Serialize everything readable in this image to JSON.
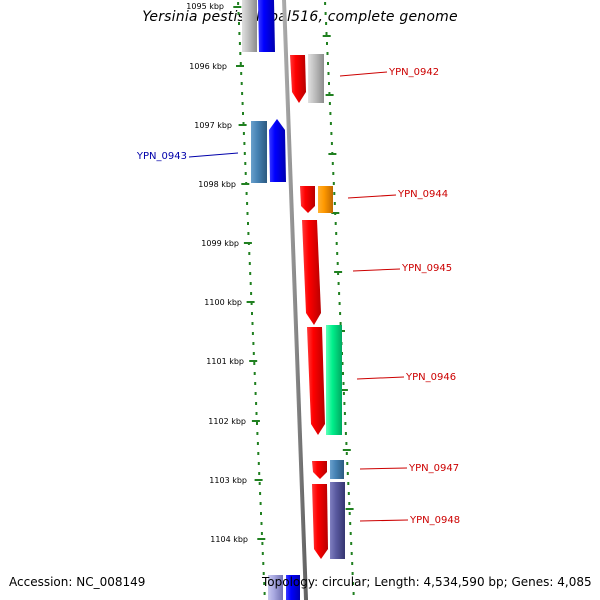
{
  "title": "Yersinia pestis Nepal516, complete genome",
  "accession": "Accession: NC_008149",
  "stats": "Topology: circular; Length: 4,534,590 bp; Genes: 4,085",
  "colors": {
    "backbone": "#8c8c8c",
    "tick": "#208020",
    "forward_label": "#cc0000",
    "reverse_label": "#0000aa"
  },
  "scale_labels": [
    {
      "text": "1095 kbp",
      "kbp": 1095
    },
    {
      "text": "1096 kbp",
      "kbp": 1096
    },
    {
      "text": "1097 kbp",
      "kbp": 1097
    },
    {
      "text": "1098 kbp",
      "kbp": 1098
    },
    {
      "text": "1099 kbp",
      "kbp": 1099
    },
    {
      "text": "1100 kbp",
      "kbp": 1100
    },
    {
      "text": "1101 kbp",
      "kbp": 1101
    },
    {
      "text": "1102 kbp",
      "kbp": 1102
    },
    {
      "text": "1103 kbp",
      "kbp": 1103
    },
    {
      "text": "1104 kbp",
      "kbp": 1104
    }
  ],
  "gene_labels": [
    {
      "text": "YPN_0942",
      "strand": "forward",
      "kbp": 1096.1
    },
    {
      "text": "YPN_0943",
      "strand": "reverse",
      "kbp": 1097.5
    },
    {
      "text": "YPN_0944",
      "strand": "forward",
      "kbp": 1098.2
    },
    {
      "text": "YPN_0945",
      "strand": "forward",
      "kbp": 1099.45
    },
    {
      "text": "YPN_0946",
      "strand": "forward",
      "kbp": 1101.3
    },
    {
      "text": "YPN_0947",
      "strand": "forward",
      "kbp": 1102.85
    },
    {
      "text": "YPN_0948",
      "strand": "forward",
      "kbp": 1103.7
    }
  ]
}
